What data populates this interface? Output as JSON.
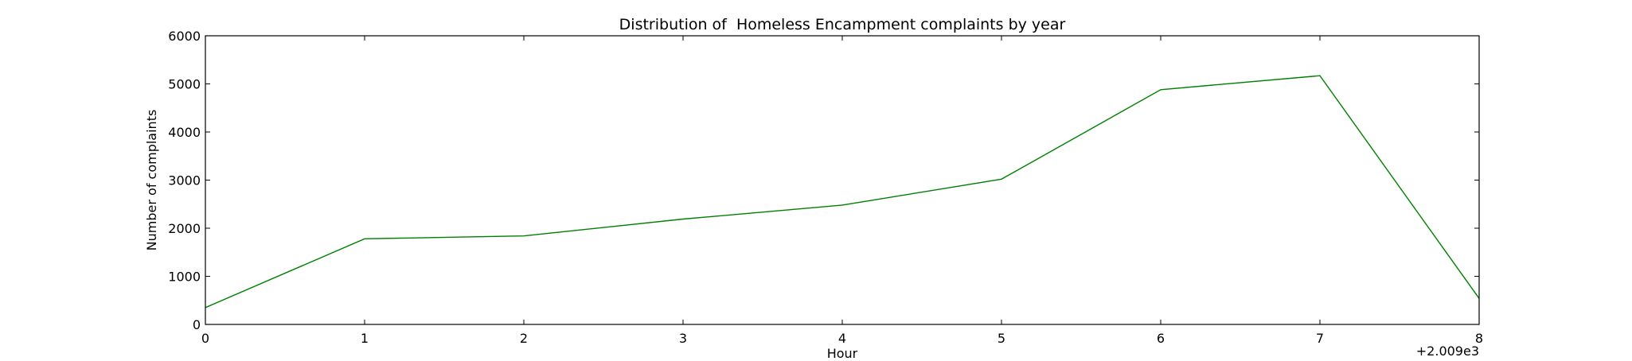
{
  "chart_data": {
    "type": "line",
    "title": "Distribution of  Homeless Encampment complaints by year",
    "xlabel": "Hour",
    "ylabel": "Number of complaints",
    "x_offset_label": "+2.009e3",
    "xlim": [
      0,
      8
    ],
    "ylim": [
      0,
      6000
    ],
    "x_ticks": [
      "0",
      "1",
      "2",
      "3",
      "4",
      "5",
      "6",
      "7",
      "8"
    ],
    "y_ticks": [
      "0",
      "1000",
      "2000",
      "3000",
      "4000",
      "5000",
      "6000"
    ],
    "grid": false,
    "line_color": "#008000",
    "series": [
      {
        "x": [
          0,
          1,
          2,
          3,
          4,
          5,
          6,
          7,
          8
        ],
        "values": [
          350,
          1780,
          1840,
          2190,
          2480,
          3020,
          4880,
          5170,
          540
        ]
      }
    ]
  }
}
